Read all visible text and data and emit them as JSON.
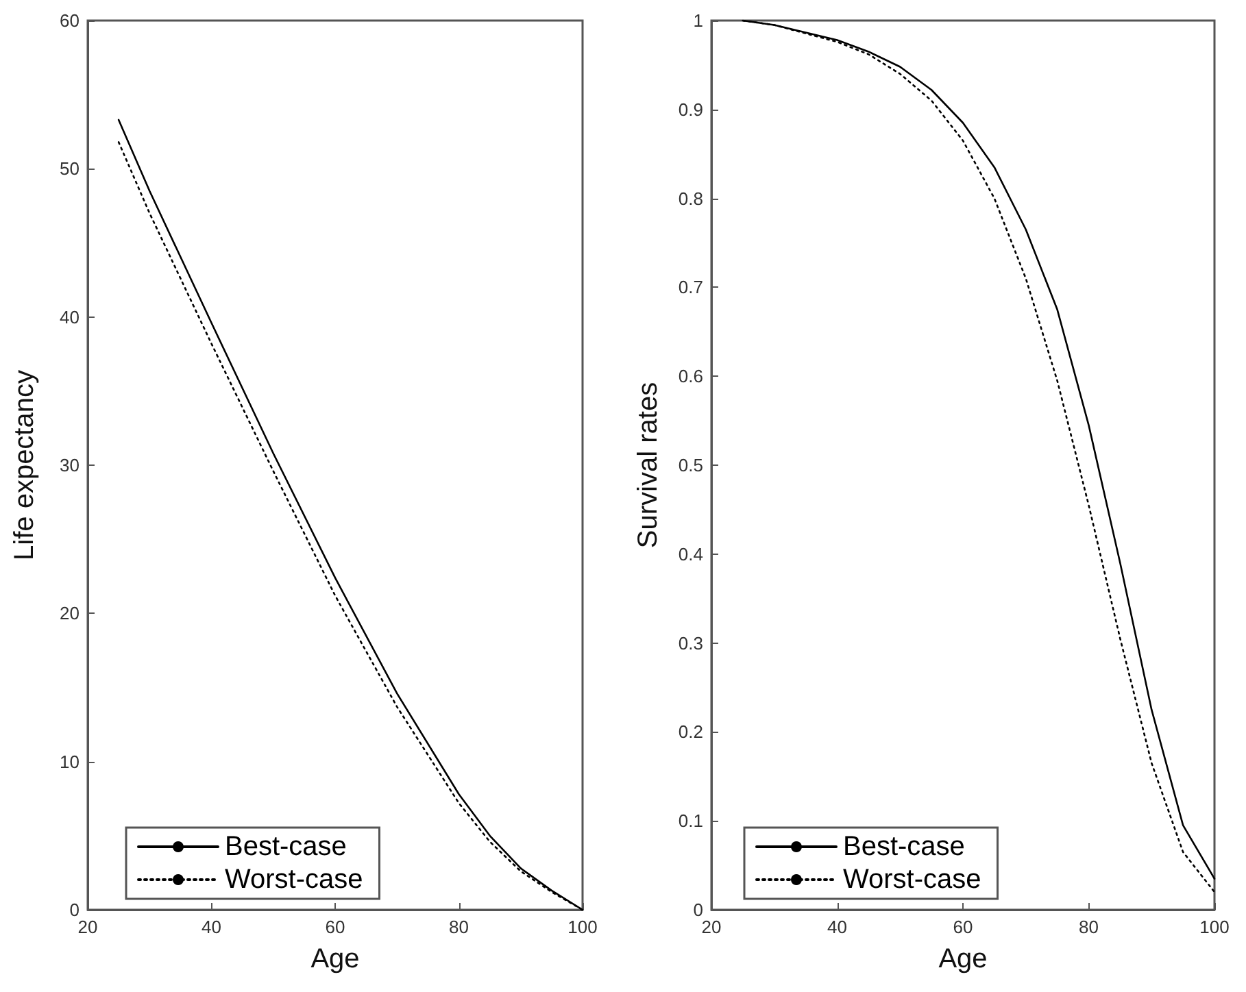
{
  "chart_data": [
    {
      "type": "line",
      "xlabel": "Age",
      "ylabel": "Life expectancy",
      "xlim": [
        20,
        100
      ],
      "xticks": [
        20,
        40,
        60,
        80,
        100
      ],
      "ylim": [
        0,
        60
      ],
      "yticks": [
        0,
        10,
        20,
        30,
        40,
        50,
        60
      ],
      "grid": false,
      "legend": "bottom left",
      "marker": "none",
      "x": [
        25,
        30,
        40,
        50,
        60,
        70,
        80,
        85,
        90,
        95,
        100
      ],
      "series": [
        {
          "name": "Best-case",
          "color": "#000000",
          "line_style": "solid",
          "values": [
            53.3,
            48.5,
            39.6,
            30.8,
            22.4,
            14.6,
            7.8,
            5.0,
            2.8,
            1.3,
            0
          ]
        },
        {
          "name": "Worst-case",
          "color": "#000000",
          "line_style": "dotted",
          "values": [
            51.8,
            47.0,
            38.2,
            29.6,
            21.2,
            13.7,
            7.2,
            4.6,
            2.6,
            1.2,
            0
          ]
        }
      ]
    },
    {
      "type": "line",
      "xlabel": "Age",
      "ylabel": "Survival rates",
      "xlim": [
        20,
        100
      ],
      "xticks": [
        20,
        40,
        60,
        80,
        100
      ],
      "ylim": [
        0,
        1
      ],
      "yticks": [
        0,
        0.1,
        0.2,
        0.3,
        0.4,
        0.5,
        0.6,
        0.7,
        0.8,
        0.9,
        1
      ],
      "grid": false,
      "legend": "bottom left",
      "marker": "none",
      "x": [
        25,
        30,
        40,
        45,
        50,
        55,
        60,
        65,
        70,
        75,
        80,
        85,
        90,
        95,
        100
      ],
      "series": [
        {
          "name": "Best-case",
          "color": "#000000",
          "line_style": "solid",
          "values": [
            1.0,
            0.995,
            0.978,
            0.965,
            0.948,
            0.922,
            0.885,
            0.835,
            0.765,
            0.675,
            0.545,
            0.39,
            0.225,
            0.095,
            0.035
          ]
        },
        {
          "name": "Worst-case",
          "color": "#000000",
          "line_style": "dotted",
          "values": [
            1.0,
            0.995,
            0.976,
            0.962,
            0.94,
            0.91,
            0.865,
            0.8,
            0.71,
            0.595,
            0.455,
            0.305,
            0.165,
            0.065,
            0.02
          ]
        }
      ]
    }
  ]
}
